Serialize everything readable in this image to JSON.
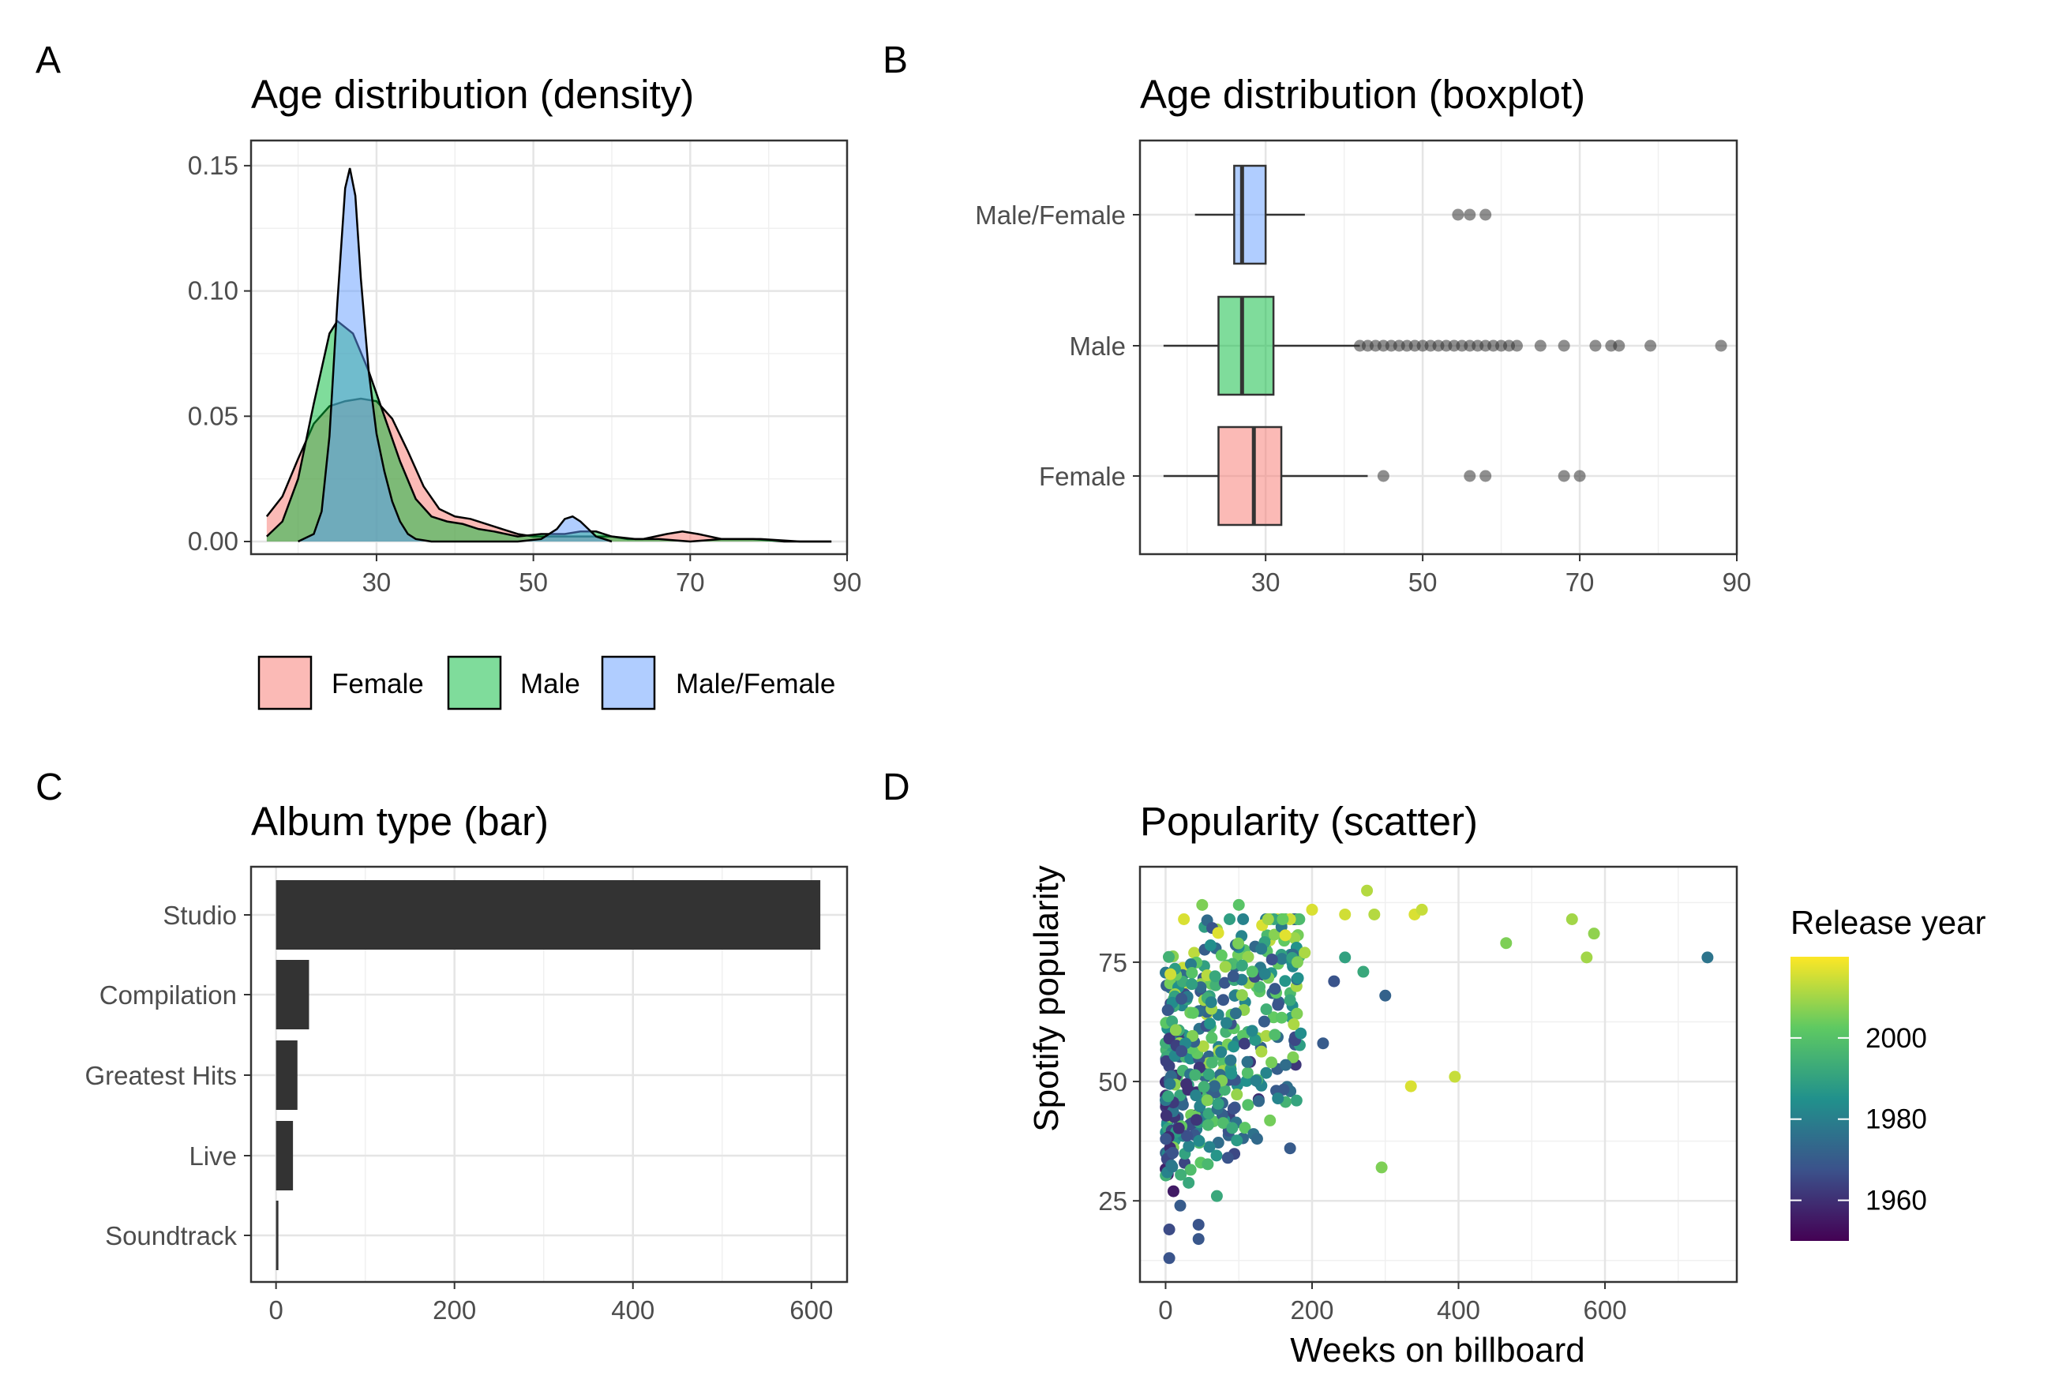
{
  "panels": {
    "a": {
      "letter": "A",
      "title": "Age distribution (density)"
    },
    "b": {
      "letter": "B",
      "title": "Age distribution (boxplot)"
    },
    "c": {
      "letter": "C",
      "title": "Album type (bar)"
    },
    "d": {
      "letter": "D",
      "title": "Popularity (scatter)"
    }
  },
  "legend_gender": [
    {
      "label": "Female",
      "color": "#F8766D"
    },
    {
      "label": "Male",
      "color": "#00BA38"
    },
    {
      "label": "Male/Female",
      "color": "#619CFF"
    }
  ],
  "colorbar": {
    "title": "Release year",
    "ticks": [
      "1960",
      "1980",
      "2000"
    ]
  },
  "chart_data": [
    {
      "type": "area",
      "title": "Age distribution (density)",
      "xlim": [
        14,
        90
      ],
      "ylim": [
        0,
        0.155
      ],
      "x_ticks": [
        30,
        50,
        70,
        90
      ],
      "y_ticks": [
        0.0,
        0.05,
        0.1,
        0.15
      ],
      "y_tick_labels": [
        "0.00",
        "0.05",
        "0.10",
        "0.15"
      ],
      "series": [
        {
          "name": "Female",
          "color": "#F8766D",
          "points": [
            [
              16,
              0.01
            ],
            [
              18,
              0.018
            ],
            [
              20,
              0.033
            ],
            [
              22,
              0.047
            ],
            [
              24,
              0.054
            ],
            [
              26,
              0.056
            ],
            [
              28,
              0.057
            ],
            [
              30,
              0.056
            ],
            [
              32,
              0.049
            ],
            [
              34,
              0.036
            ],
            [
              36,
              0.022
            ],
            [
              38,
              0.013
            ],
            [
              40,
              0.01
            ],
            [
              42,
              0.009
            ],
            [
              44,
              0.007
            ],
            [
              46,
              0.005
            ],
            [
              48,
              0.003
            ],
            [
              50,
              0.002
            ],
            [
              52,
              0.002
            ],
            [
              55,
              0.002
            ],
            [
              58,
              0.002
            ],
            [
              60,
              0.002
            ],
            [
              62,
              0.001
            ],
            [
              64,
              0.001
            ],
            [
              67,
              0.003
            ],
            [
              69,
              0.004
            ],
            [
              71,
              0.003
            ],
            [
              74,
              0.001
            ],
            [
              78,
              0.001
            ],
            [
              82,
              0.0
            ],
            [
              88,
              0.0
            ]
          ]
        },
        {
          "name": "Male",
          "color": "#00BA38",
          "points": [
            [
              16,
              0.002
            ],
            [
              18,
              0.008
            ],
            [
              20,
              0.025
            ],
            [
              22,
              0.055
            ],
            [
              24,
              0.083
            ],
            [
              25,
              0.088
            ],
            [
              27,
              0.083
            ],
            [
              29,
              0.068
            ],
            [
              31,
              0.05
            ],
            [
              33,
              0.032
            ],
            [
              35,
              0.017
            ],
            [
              37,
              0.01
            ],
            [
              39,
              0.008
            ],
            [
              41,
              0.007
            ],
            [
              43,
              0.005
            ],
            [
              45,
              0.004
            ],
            [
              48,
              0.002
            ],
            [
              51,
              0.003
            ],
            [
              54,
              0.003
            ],
            [
              56,
              0.004
            ],
            [
              58,
              0.004
            ],
            [
              60,
              0.002
            ],
            [
              63,
              0.001
            ],
            [
              66,
              0.001
            ],
            [
              70,
              0.0
            ],
            [
              74,
              0.001
            ],
            [
              79,
              0.001
            ],
            [
              84,
              0.0
            ],
            [
              88,
              0.0
            ]
          ]
        },
        {
          "name": "Male/Female",
          "color": "#619CFF",
          "points": [
            [
              20,
              0.0
            ],
            [
              22,
              0.003
            ],
            [
              23,
              0.012
            ],
            [
              24,
              0.042
            ],
            [
              25,
              0.095
            ],
            [
              26,
              0.141
            ],
            [
              26.6,
              0.149
            ],
            [
              27.3,
              0.138
            ],
            [
              28,
              0.105
            ],
            [
              29,
              0.068
            ],
            [
              30,
              0.043
            ],
            [
              31,
              0.028
            ],
            [
              32,
              0.016
            ],
            [
              33,
              0.008
            ],
            [
              34,
              0.003
            ],
            [
              35,
              0.001
            ],
            [
              37,
              0.0
            ],
            [
              48,
              0.0
            ],
            [
              51,
              0.001
            ],
            [
              53,
              0.005
            ],
            [
              54,
              0.009
            ],
            [
              55,
              0.01
            ],
            [
              56,
              0.008
            ],
            [
              57,
              0.005
            ],
            [
              58,
              0.002
            ],
            [
              60,
              0.0
            ]
          ]
        }
      ]
    },
    {
      "type": "boxplot",
      "title": "Age distribution (boxplot)",
      "xlim": [
        14,
        90
      ],
      "x_ticks": [
        30,
        50,
        70,
        90
      ],
      "categories": [
        "Male/Female",
        "Male",
        "Female"
      ],
      "boxes": [
        {
          "name": "Male/Female",
          "color": "#619CFF",
          "whisker_low": 21,
          "q1": 26,
          "median": 27,
          "q3": 30,
          "whisker_high": 35,
          "outliers": [
            54.5,
            56,
            58
          ]
        },
        {
          "name": "Male",
          "color": "#00BA38",
          "whisker_low": 17,
          "q1": 24,
          "median": 27,
          "q3": 31,
          "whisker_high": 42,
          "outliers": [
            42,
            43,
            44,
            45,
            46,
            47,
            48,
            49,
            50,
            51,
            52,
            53,
            54,
            55,
            56,
            57,
            58,
            59,
            60,
            61,
            62,
            65,
            68,
            72,
            74,
            75,
            79,
            88
          ]
        },
        {
          "name": "Female",
          "color": "#F8766D",
          "whisker_low": 17,
          "q1": 24,
          "median": 28.5,
          "q3": 32,
          "whisker_high": 43,
          "outliers": [
            45,
            56,
            58,
            68,
            70
          ]
        }
      ]
    },
    {
      "type": "bar",
      "title": "Album type (bar)",
      "orientation": "horizontal",
      "categories": [
        "Studio",
        "Compilation",
        "Greatest Hits",
        "Live",
        "Soundtrack"
      ],
      "values": [
        610,
        37,
        24,
        19,
        2
      ],
      "xlim": [
        -28,
        640
      ],
      "x_ticks": [
        0,
        200,
        400,
        600
      ],
      "color": "#333333"
    },
    {
      "type": "scatter",
      "title": "Popularity (scatter)",
      "xlabel": "Weeks on billboard",
      "ylabel": "Spotify popularity",
      "xlim": [
        -35,
        780
      ],
      "ylim": [
        8,
        95
      ],
      "x_ticks": [
        0,
        200,
        400,
        600
      ],
      "y_ticks": [
        25,
        50,
        75
      ],
      "color_scale": "viridis",
      "color_range": [
        1950,
        2020
      ],
      "color_variable": "Release year",
      "points": [
        {
          "x": 275,
          "y": 90,
          "year": 2012
        },
        {
          "x": 200,
          "y": 86,
          "year": 2016
        },
        {
          "x": 245,
          "y": 85,
          "year": 2015
        },
        {
          "x": 285,
          "y": 85,
          "year": 2012
        },
        {
          "x": 340,
          "y": 85,
          "year": 2016
        },
        {
          "x": 350,
          "y": 86,
          "year": 2014
        },
        {
          "x": 555,
          "y": 84,
          "year": 2010
        },
        {
          "x": 585,
          "y": 81,
          "year": 2008
        },
        {
          "x": 465,
          "y": 79,
          "year": 2006
        },
        {
          "x": 575,
          "y": 76,
          "year": 2010
        },
        {
          "x": 740,
          "y": 76,
          "year": 1977
        },
        {
          "x": 395,
          "y": 51,
          "year": 2014
        },
        {
          "x": 335,
          "y": 49,
          "year": 2016
        },
        {
          "x": 295,
          "y": 32,
          "year": 2006
        },
        {
          "x": 300,
          "y": 68,
          "year": 1972
        },
        {
          "x": 230,
          "y": 71,
          "year": 1968
        },
        {
          "x": 270,
          "y": 73,
          "year": 1992
        },
        {
          "x": 245,
          "y": 76,
          "year": 1990
        },
        {
          "x": 190,
          "y": 77,
          "year": 2011
        },
        {
          "x": 215,
          "y": 58,
          "year": 1970
        },
        {
          "x": 170,
          "y": 36,
          "year": 1970
        },
        {
          "x": 120,
          "y": 39,
          "year": 1976
        },
        {
          "x": 125,
          "y": 38,
          "year": 1974
        },
        {
          "x": 25,
          "y": 84,
          "year": 2016
        },
        {
          "x": 50,
          "y": 87,
          "year": 2006
        },
        {
          "x": 100,
          "y": 87,
          "year": 2001
        },
        {
          "x": 140,
          "y": 84,
          "year": 2010
        },
        {
          "x": 160,
          "y": 84,
          "year": 2003
        },
        {
          "x": 180,
          "y": 75,
          "year": 2006
        },
        {
          "x": 175,
          "y": 62,
          "year": 2011
        },
        {
          "x": 5,
          "y": 13,
          "year": 1968
        },
        {
          "x": 5,
          "y": 19,
          "year": 1966
        },
        {
          "x": 45,
          "y": 17,
          "year": 1969
        },
        {
          "x": 45,
          "y": 20,
          "year": 1968
        },
        {
          "x": 20,
          "y": 24,
          "year": 1970
        },
        {
          "x": 70,
          "y": 26,
          "year": 1992
        },
        {
          "x": 85,
          "y": 34,
          "year": 1968
        }
      ]
    }
  ]
}
